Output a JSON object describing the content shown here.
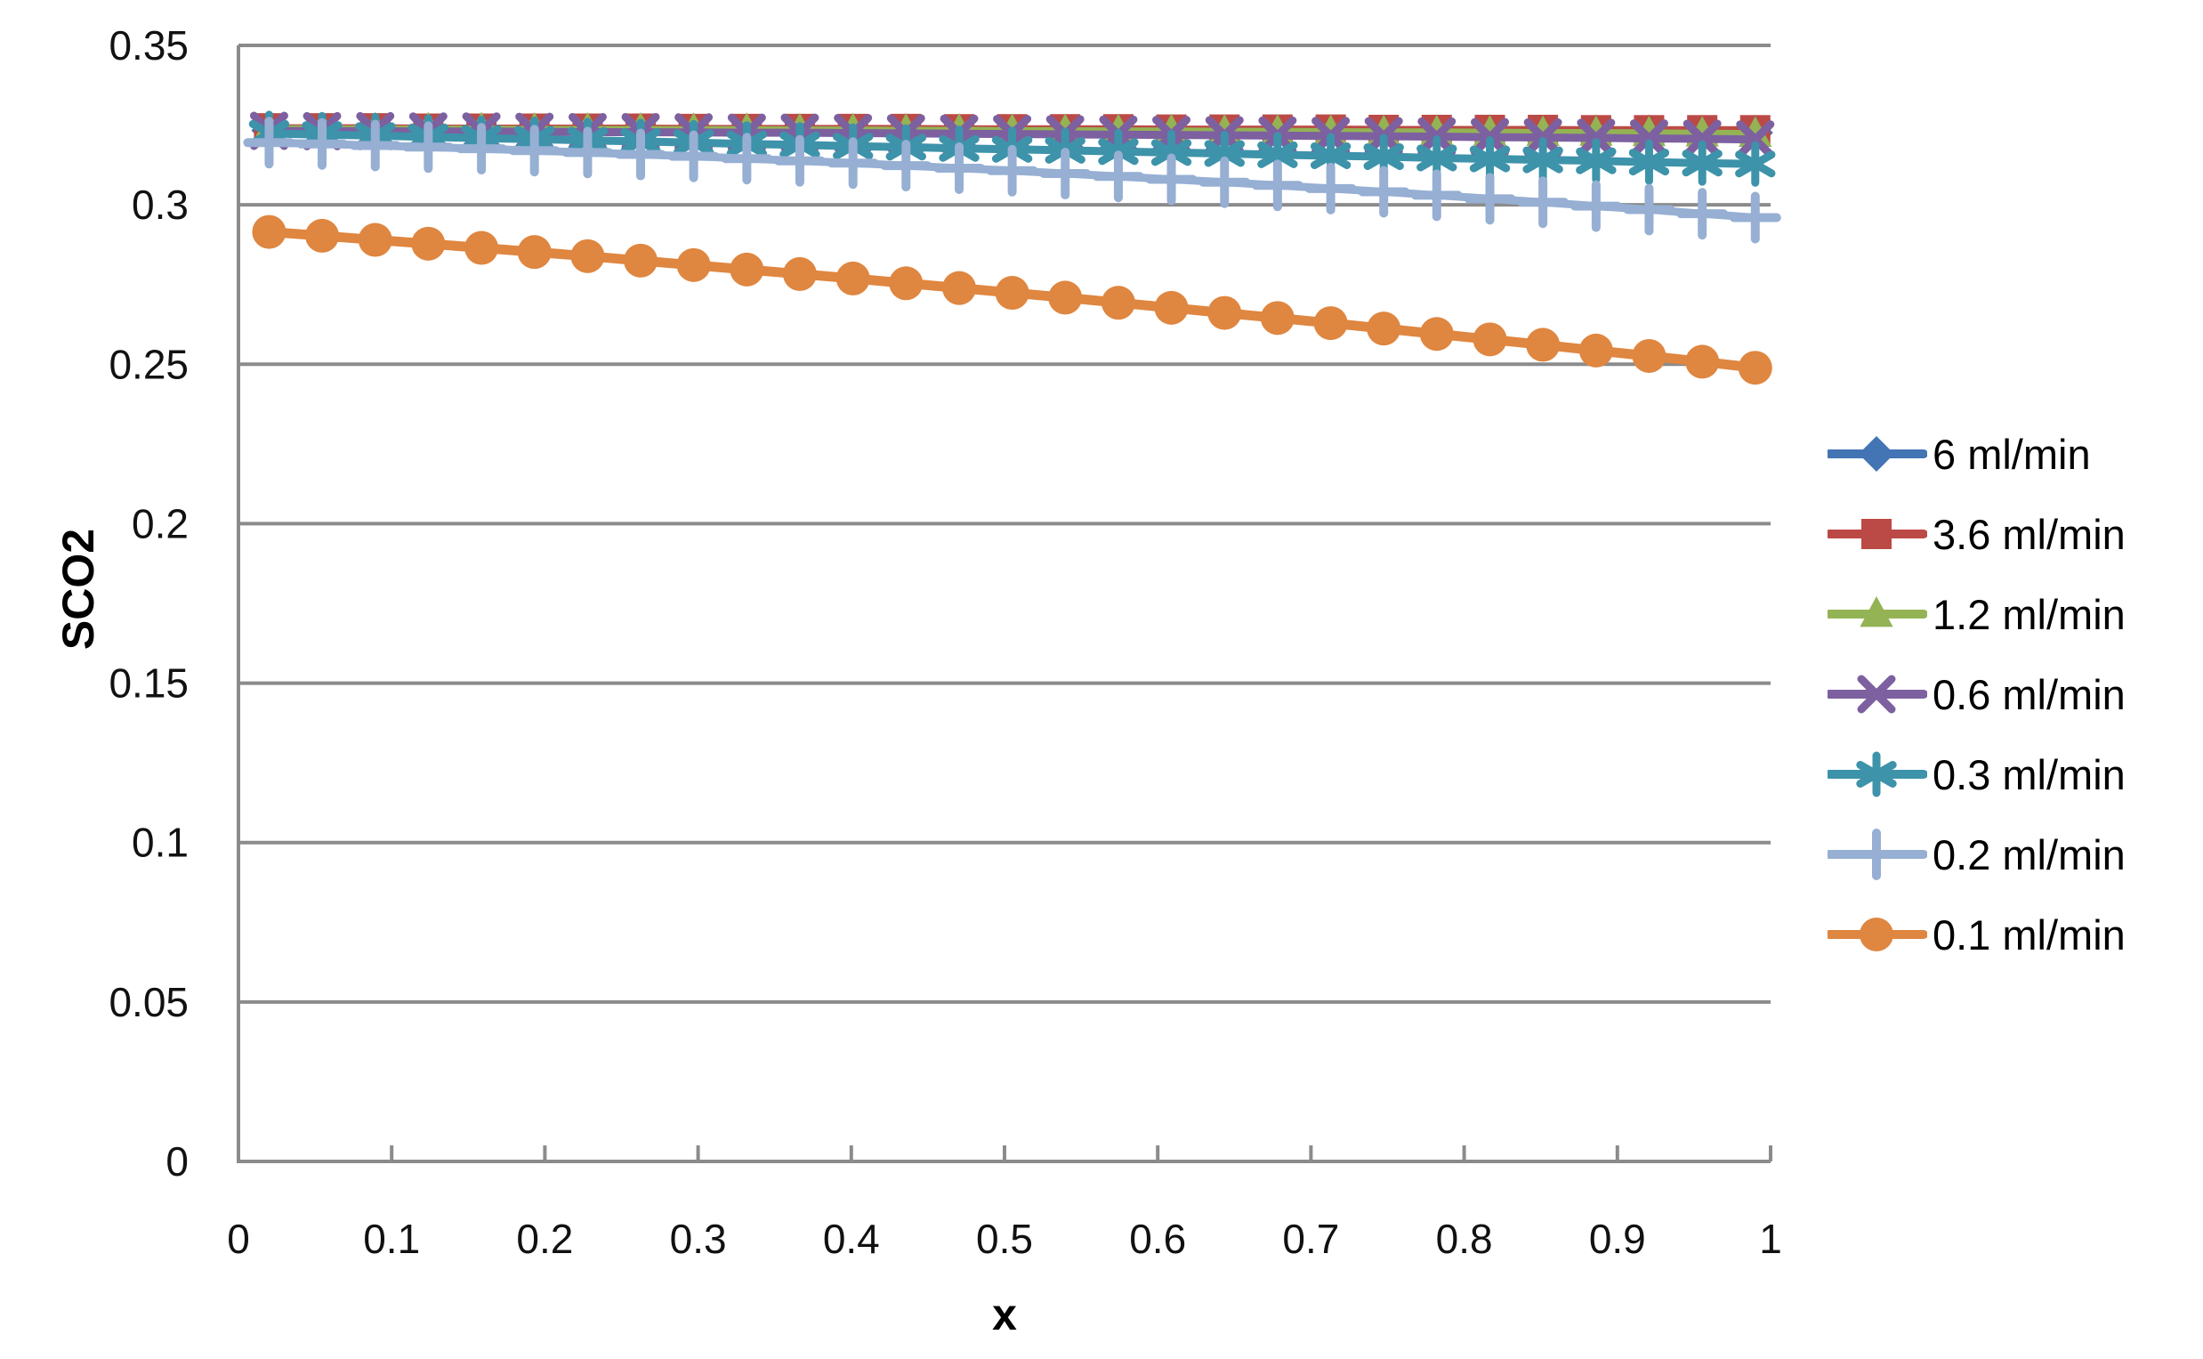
{
  "chart_data": {
    "type": "line",
    "title": "",
    "xlabel": "x",
    "ylabel": "SCO2",
    "xlim": [
      0,
      1
    ],
    "ylim": [
      0,
      0.35
    ],
    "grid": "horizontal-only",
    "legend_position": "right-middle",
    "axis_color": "#8B8B8B",
    "text_color": "#111111",
    "background_color": "#FFFFFF",
    "x_tick_labels": [
      "0",
      "0.1",
      "0.2",
      "0.3",
      "0.4",
      "0.5",
      "0.6",
      "0.7",
      "0.8",
      "0.9",
      "1"
    ],
    "x_tick_values": [
      0,
      0.1,
      0.2,
      0.3,
      0.4,
      0.5,
      0.6,
      0.7,
      0.8,
      0.9,
      1
    ],
    "y_tick_labels": [
      "0.35",
      "0.3",
      "0.25",
      "0.2",
      "0.15",
      "0.1",
      "0.05",
      "0"
    ],
    "y_tick_values": [
      0.35,
      0.3,
      0.25,
      0.2,
      0.15,
      0.1,
      0.05,
      0
    ],
    "x": [
      0.02,
      0.0546,
      0.0893,
      0.1239,
      0.1586,
      0.1932,
      0.2279,
      0.2625,
      0.2971,
      0.3318,
      0.3664,
      0.4011,
      0.4357,
      0.4704,
      0.505,
      0.5396,
      0.5743,
      0.6089,
      0.6436,
      0.6782,
      0.7129,
      0.7475,
      0.7821,
      0.8168,
      0.8514,
      0.8861,
      0.9207,
      0.9554,
      0.99
    ],
    "series": [
      {
        "name": "6 ml/min",
        "color": "#4374B4",
        "marker": "diamond",
        "values": [
          0.3233,
          0.3233,
          0.3233,
          0.3232,
          0.3232,
          0.3232,
          0.3232,
          0.3232,
          0.3232,
          0.3231,
          0.3231,
          0.3231,
          0.3231,
          0.323,
          0.323,
          0.323,
          0.323,
          0.3229,
          0.3229,
          0.3229,
          0.3229,
          0.3228,
          0.3228,
          0.3228,
          0.3227,
          0.3227,
          0.3227,
          0.3226,
          0.3226
        ]
      },
      {
        "name": "3.6 ml/min",
        "color": "#BB4A46",
        "marker": "square",
        "values": [
          0.324,
          0.324,
          0.324,
          0.3239,
          0.3239,
          0.3239,
          0.3239,
          0.3239,
          0.3238,
          0.3238,
          0.3238,
          0.3238,
          0.3238,
          0.3237,
          0.3237,
          0.3237,
          0.3237,
          0.3236,
          0.3236,
          0.3236,
          0.3236,
          0.3235,
          0.3235,
          0.3235,
          0.3235,
          0.3234,
          0.3234,
          0.3234,
          0.3234
        ]
      },
      {
        "name": "1.2 ml/min",
        "color": "#94B354",
        "marker": "triangle",
        "values": [
          0.3237,
          0.3237,
          0.3236,
          0.3236,
          0.3236,
          0.3235,
          0.3235,
          0.3235,
          0.3234,
          0.3234,
          0.3233,
          0.3233,
          0.3232,
          0.3232,
          0.3231,
          0.3231,
          0.323,
          0.323,
          0.3229,
          0.3229,
          0.3228,
          0.3227,
          0.3227,
          0.3226,
          0.3225,
          0.3225,
          0.3224,
          0.3223,
          0.3222
        ]
      },
      {
        "name": "0.6 ml/min",
        "color": "#7D60A0",
        "marker": "x",
        "values": [
          0.3232,
          0.3231,
          0.3231,
          0.323,
          0.323,
          0.3229,
          0.3228,
          0.3228,
          0.3227,
          0.3226,
          0.3226,
          0.3225,
          0.3224,
          0.3223,
          0.3222,
          0.3221,
          0.322,
          0.3219,
          0.3218,
          0.3217,
          0.3216,
          0.3215,
          0.3214,
          0.3212,
          0.3211,
          0.321,
          0.3208,
          0.3207,
          0.3205
        ]
      },
      {
        "name": "0.3 ml/min",
        "color": "#3D93AA",
        "marker": "asterisk",
        "values": [
          0.3224,
          0.322,
          0.3217,
          0.3213,
          0.3209,
          0.3206,
          0.3202,
          0.3199,
          0.3195,
          0.3191,
          0.3188,
          0.3184,
          0.3181,
          0.3177,
          0.3174,
          0.3171,
          0.3167,
          0.3164,
          0.3161,
          0.3157,
          0.3154,
          0.3151,
          0.3147,
          0.3144,
          0.3141,
          0.3138,
          0.3134,
          0.3131,
          0.3128
        ]
      },
      {
        "name": "0.2 ml/min",
        "color": "#96AFD3",
        "marker": "plus",
        "values": [
          0.3195,
          0.3191,
          0.3186,
          0.3181,
          0.3176,
          0.317,
          0.3164,
          0.3158,
          0.3152,
          0.3145,
          0.3138,
          0.3131,
          0.3123,
          0.3115,
          0.3107,
          0.3098,
          0.3089,
          0.308,
          0.3071,
          0.3061,
          0.3051,
          0.3041,
          0.303,
          0.3019,
          0.3008,
          0.2996,
          0.2985,
          0.2972,
          0.296
        ]
      },
      {
        "name": "0.1 ml/min",
        "color": "#DF8640",
        "marker": "circle",
        "values": [
          0.2915,
          0.2903,
          0.289,
          0.2878,
          0.2865,
          0.2852,
          0.2839,
          0.2825,
          0.2811,
          0.2797,
          0.2783,
          0.2769,
          0.2754,
          0.2739,
          0.2724,
          0.2709,
          0.2693,
          0.2677,
          0.2661,
          0.2645,
          0.2629,
          0.2612,
          0.2595,
          0.2578,
          0.2561,
          0.2543,
          0.2526,
          0.2508,
          0.2489
        ]
      }
    ]
  }
}
